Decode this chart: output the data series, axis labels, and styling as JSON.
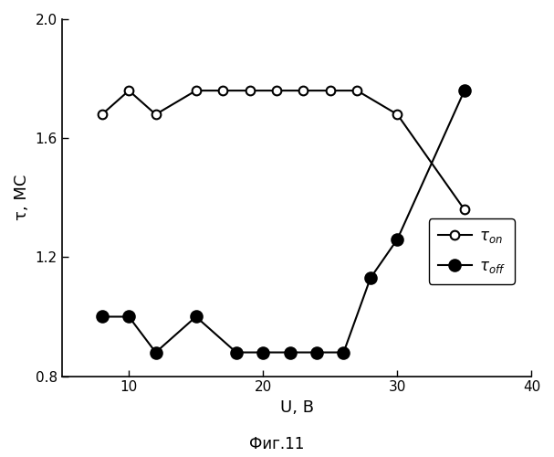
{
  "tau_on_x": [
    8,
    10,
    12,
    15,
    17,
    19,
    21,
    23,
    25,
    27,
    30,
    35
  ],
  "tau_on_y": [
    1.68,
    1.76,
    1.68,
    1.76,
    1.76,
    1.76,
    1.76,
    1.76,
    1.76,
    1.76,
    1.68,
    1.36
  ],
  "tau_off_x": [
    8,
    10,
    12,
    15,
    18,
    20,
    22,
    24,
    26,
    28,
    30,
    35
  ],
  "tau_off_y": [
    1.0,
    1.0,
    0.88,
    1.0,
    0.88,
    0.88,
    0.88,
    0.88,
    0.88,
    1.13,
    1.26,
    1.76
  ],
  "xlabel": "U, В",
  "ylabel": "τ, МС",
  "xlim": [
    5,
    40
  ],
  "ylim": [
    0.8,
    2.0
  ],
  "xticks": [
    10,
    20,
    30,
    40
  ],
  "yticks": [
    0.8,
    1.2,
    1.6,
    2.0
  ],
  "fig_label": "Фиг.11",
  "line_color": "black",
  "background_color": "white",
  "marker_size_on": 7,
  "marker_size_off": 9,
  "linewidth": 1.5
}
